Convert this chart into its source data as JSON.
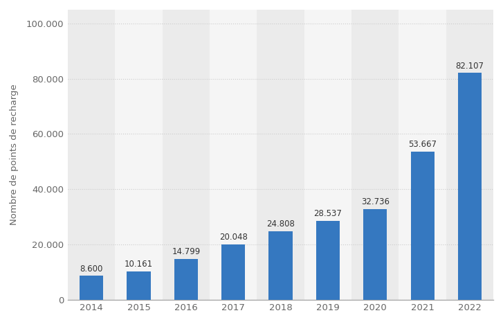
{
  "years": [
    "2014",
    "2015",
    "2016",
    "2017",
    "2018",
    "2019",
    "2020",
    "2021",
    "2022"
  ],
  "values": [
    8600,
    10161,
    14799,
    20048,
    24808,
    28537,
    32736,
    53667,
    82107
  ],
  "labels": [
    "8.600",
    "10.161",
    "14.799",
    "20.048",
    "24.808",
    "28.537",
    "32.736",
    "53.667",
    "82.107"
  ],
  "bar_color": "#3578c0",
  "outer_background": "#ffffff",
  "plot_background_light": "#ebebeb",
  "plot_background_dark": "#f5f5f5",
  "ylabel": "Nombre de points de recharge",
  "ylim": [
    0,
    105000
  ],
  "yticks": [
    0,
    20000,
    40000,
    60000,
    80000,
    100000
  ],
  "ytick_labels": [
    "0",
    "20.000",
    "40.000",
    "60.000",
    "80.000",
    "100.000"
  ],
  "grid_color": "#cccccc",
  "label_fontsize": 8.5,
  "ylabel_fontsize": 9.5,
  "tick_fontsize": 9.5,
  "bar_width": 0.5,
  "figsize": [
    7.27,
    4.65
  ],
  "dpi": 100
}
